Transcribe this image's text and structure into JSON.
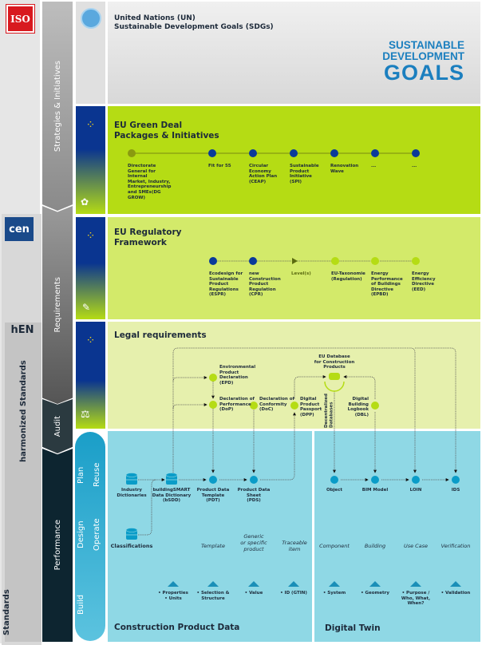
{
  "left": {
    "iso_logo": "ISO",
    "cen_logo": "cen",
    "hen_label": "hEN",
    "harmonized": "harmonized Standards",
    "standards": "Standards"
  },
  "phases": {
    "strategies": "Strategies & Initiatives",
    "requirements": "Requirements",
    "audit": "Audit",
    "performance": "Performance"
  },
  "lifecycle": {
    "plan": "Plan",
    "design": "Design",
    "build": "Build",
    "reuse": "Reuse",
    "operate": "Operate"
  },
  "header": {
    "title": "United Nations (UN)\nSustainable Development Goals (SDGs)",
    "sdg_logo": [
      "SUSTAINABLE",
      "DEVELOPMENT",
      "GOALS"
    ]
  },
  "green_deal": {
    "title": "EU Green Deal\nPackages & Initiatives",
    "items": [
      "Directorate\nGeneral for Internal\nMarket, Industry,\nEntrepreneurship\nand SMEs(DG GROW)",
      "Fit for 55",
      "Circular\nEconomy\nAction Plan\n(CEAP)",
      "Sustainable\nProduct\nInitiative\n(SPI)",
      "Renovation\nWave",
      "...",
      "..."
    ]
  },
  "regulatory": {
    "title": "EU Regulatory\nFramework",
    "items": [
      "Ecodesign for\nSustainable\nProduct\nRegulations\n(ESPR)",
      "new\nConstruction\nProduct\nRegulation\n(CPR)",
      "Level(s)",
      "EU-Taxonomie\n(Regulation)",
      "Energy\nPerformance\nof Buildings\nDirective\n(EPBD)",
      "Energy\nEfficiency\nDirective\n(EED)"
    ]
  },
  "legal": {
    "title": "Legal requirements",
    "epd": "Environmental\nProduct\nDeclaration\n(EPD)",
    "dop": "Declaration of\nPerformance\n(DoP)",
    "doc": "Declaration of\nConformity\n(DoC)",
    "dpp": "Digital\nProduct\nPassport\n(DPP)",
    "eu_db": "EU Database\nfor Construction\nProducts",
    "decentralized": "Decentralized\nDatabases",
    "dbl": "Digital\nBuilding\nLogbook\n(DBL)"
  },
  "cpd": {
    "title": "Construction Product Data",
    "industry": "Industry\nDictionaries",
    "classifications": "Classifications",
    "bsdd": "buildingSMART\nData Dictionary\n(bSDD)",
    "pdt": "Product Data\nTemplate\n(PDT)",
    "pds": "Product Data\nSheet\n(PDS)",
    "italics": [
      "Template",
      "Generic\nor specific\nproduct",
      "Traceable\nitem"
    ],
    "bullets": [
      "• Properties\n• Units",
      "• Selection &\nStructure",
      "• Value",
      "• ID (GTIN)"
    ]
  },
  "twin": {
    "title": "Digital Twin",
    "nodes": [
      "Object",
      "BIM Model",
      "LOIN",
      "IDS"
    ],
    "italics": [
      "Component",
      "Building",
      "Use Case",
      "Verification"
    ],
    "bullets": [
      "• System",
      "• Geometry",
      "• Purpose /\nWho, What,\nWhen?",
      "• Validation"
    ]
  },
  "colors": {
    "navy_node": "#0a3a9a",
    "lime_node": "#b5dc14",
    "teal_node": "#0a9cc8",
    "green_panel": "#b5dc14",
    "reg_panel": "#d3ea6a",
    "legal_panel": "#e6f0ad",
    "data_panel": "#8fd8e5",
    "dark_phase": "#0d2530"
  }
}
